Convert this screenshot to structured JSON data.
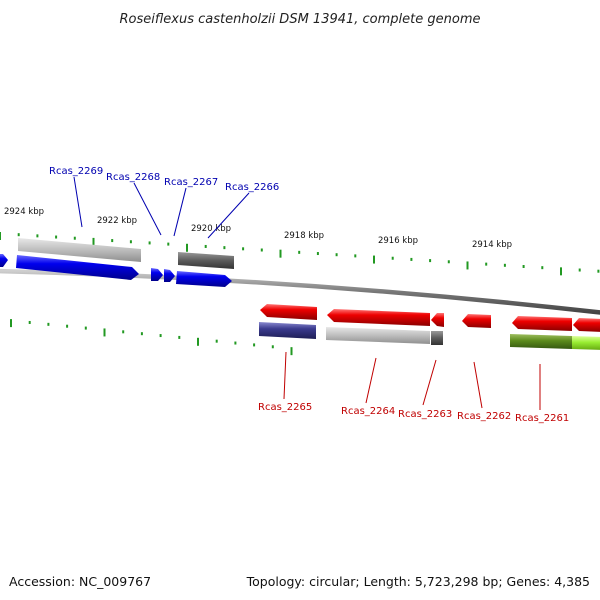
{
  "title": "Roseiflexus castenholzii DSM 13941, complete genome",
  "footer": {
    "accession": "Accession: NC_009767",
    "summary": "Topology: circular; Length: 5,723,298 bp; Genes: 4,385"
  },
  "kbp_labels": [
    "2924 kbp",
    "2922 kbp",
    "2920 kbp",
    "2918 kbp",
    "2916 kbp",
    "2914 kbp"
  ],
  "gene_labels_forward": [
    "Rcas_2269",
    "Rcas_2268",
    "Rcas_2267",
    "Rcas_2266"
  ],
  "gene_labels_reverse": [
    "Rcas_2265",
    "Rcas_2264",
    "Rcas_2263",
    "Rcas_2262",
    "Rcas_2261"
  ],
  "colors": {
    "forward_gene": "#0000ee",
    "reverse_gene": "#ee0000",
    "tick": "#229922",
    "backbone": "#888888",
    "label_forward": "#0000b0",
    "label_reverse": "#c00000"
  }
}
